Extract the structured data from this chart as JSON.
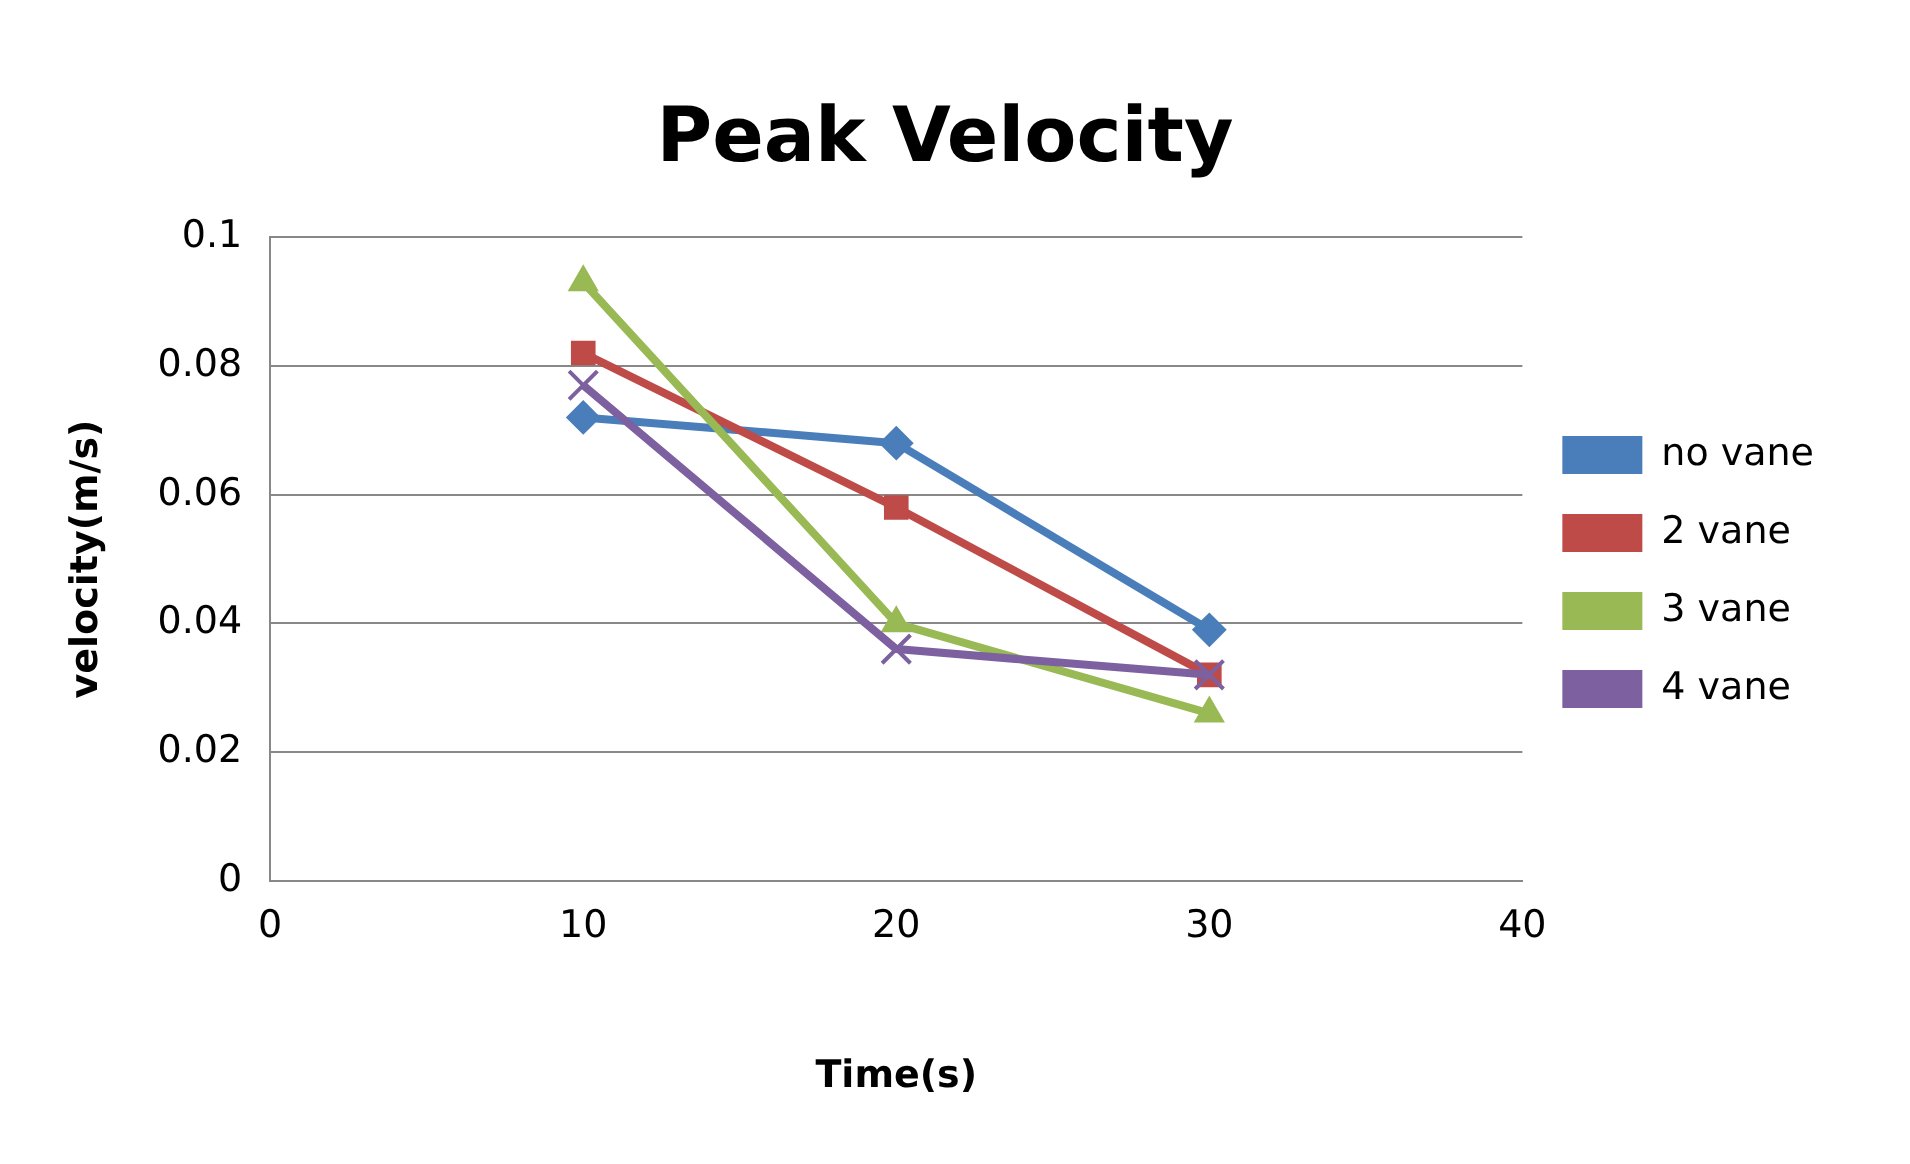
{
  "chart_data": {
    "type": "line",
    "title": "Peak Velocity",
    "xlabel": "Time(s)",
    "ylabel": "velocity(m/s)",
    "x": [
      10,
      20,
      30
    ],
    "series": [
      {
        "name": "no vane",
        "color": "#4a7ebb",
        "marker": "diamond",
        "values": [
          0.072,
          0.068,
          0.039
        ]
      },
      {
        "name": "2 vane",
        "color": "#be4b48",
        "marker": "square",
        "values": [
          0.082,
          0.058,
          0.032
        ]
      },
      {
        "name": "3 vane",
        "color": "#98b954",
        "marker": "triangle",
        "values": [
          0.093,
          0.04,
          0.026
        ]
      },
      {
        "name": "4 vane",
        "color": "#7d60a0",
        "marker": "cross",
        "values": [
          0.077,
          0.036,
          0.032
        ]
      }
    ],
    "xlim": [
      0,
      40
    ],
    "xticks": [
      0,
      10,
      20,
      30,
      40
    ],
    "ylim": [
      0,
      0.1
    ],
    "yticks": [
      0,
      0.02,
      0.04,
      0.06,
      0.08,
      0.1
    ],
    "grid": "y",
    "legend": "right"
  }
}
